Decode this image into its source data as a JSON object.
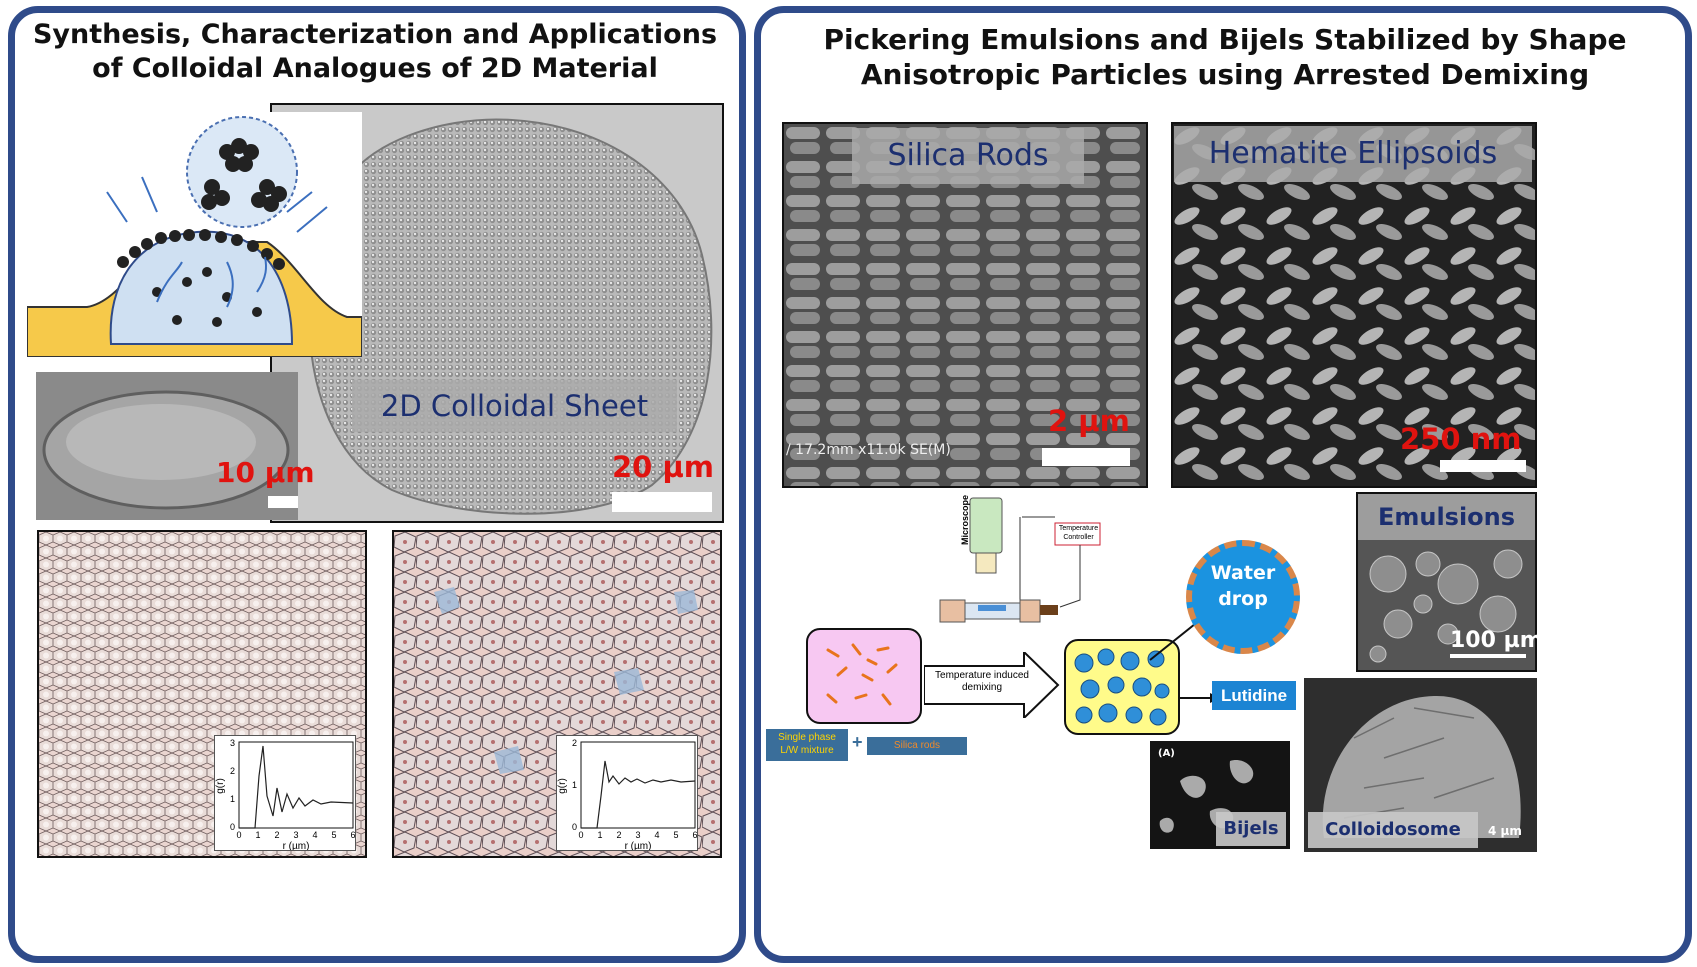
{
  "left_panel": {
    "title_line1": "Synthesis, Characterization and Applications",
    "title_line2": "of Colloidal Analogues of 2D Material",
    "sheet_label": "2D Colloidal Sheet",
    "scale_main": "20 µm",
    "scale_small": "10 µm",
    "plot_left": {
      "ylabel": "g(r)",
      "xlabel": "r (µm)",
      "xticks": [
        "0",
        "1",
        "2",
        "3",
        "4",
        "5",
        "6"
      ],
      "yticks": [
        "0",
        "1",
        "2",
        "3"
      ]
    },
    "plot_right": {
      "ylabel": "g(r)",
      "xlabel": "r (µm)",
      "xticks": [
        "0",
        "1",
        "2",
        "3",
        "4",
        "5",
        "6"
      ],
      "yticks": [
        "0",
        "1",
        "2"
      ]
    }
  },
  "right_panel": {
    "title_line1": "Pickering Emulsions and Bijels Stabilized by Shape",
    "title_line2": "Anisotropic Particles using Arrested Demixing",
    "silica_label": "Silica Rods",
    "silica_scale": "2 µm",
    "silica_meta": "/ 17.2mm x11.0k SE(M)",
    "hematite_label": "Hematite Ellipsoids",
    "hematite_scale": "250 nm",
    "emulsions_label": "Emulsions",
    "emulsions_scale": "100 µm",
    "microscope": "Microscope",
    "temp_controller_line1": "Temperature",
    "temp_controller_line2": "Controller",
    "arrow_line1": "Temperature  induced",
    "arrow_line2": "demixing",
    "water_line1": "Water",
    "water_line2": "drop",
    "lutidine": "Lutidine",
    "single_phase_line1": "Single phase",
    "single_phase_line2": "L/W mixture",
    "plus": "+",
    "silica_rods_small": "Silica rods",
    "bijels_tag": "(A)",
    "bijels_label": "Bijels",
    "colloidosome_label": "Colloidosome",
    "colloidosome_scale": "4 µm"
  }
}
